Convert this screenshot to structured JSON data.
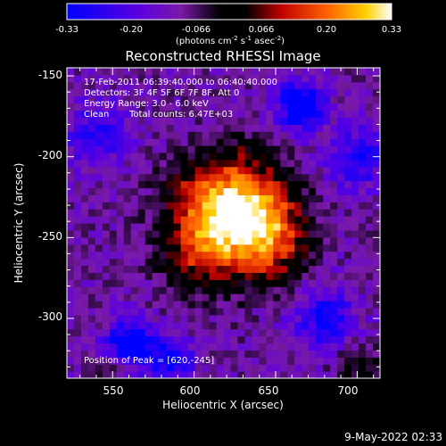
{
  "colorbar": {
    "ticks": [
      "-0.33",
      "-0.20",
      "-0.066",
      "0.066",
      "0.20",
      "0.33"
    ],
    "units_main": "(photons cm",
    "units_exp1": "-2",
    "units_mid1": " s",
    "units_exp2": "-1",
    "units_mid2": " asec",
    "units_exp3": "-2",
    "units_end": ")"
  },
  "chart_data": {
    "type": "heatmap",
    "title": "Reconstructed RHESSI Image",
    "xlabel": "Heliocentric X (arcsec)",
    "ylabel": "Heliocentric Y (arcsec)",
    "xlim": [
      522,
      714
    ],
    "ylim": [
      -337,
      -145
    ],
    "xticks": [
      "550",
      "600",
      "650",
      "700"
    ],
    "yticks": [
      "-150",
      "-200",
      "-250",
      "-300"
    ],
    "clim": [
      -0.33,
      0.33
    ],
    "colormap": "blue-black-red-yellow-white (IDL color table 5)",
    "annotations": [
      "17-Feb-2011 06:39:40.000 to 06:40:40.000",
      "Detectors: 3F 4F 5F 6F 7F 8F, Att 0",
      "Energy Range: 3.0 - 6.0 keV",
      "Clean",
      "Total counts: 6.47E+03"
    ],
    "peak_label": "Position of Peak = [620,-245]",
    "peak": [
      620,
      -245
    ]
  },
  "footer": {
    "timestamp": "9-May-2022 02:33"
  }
}
